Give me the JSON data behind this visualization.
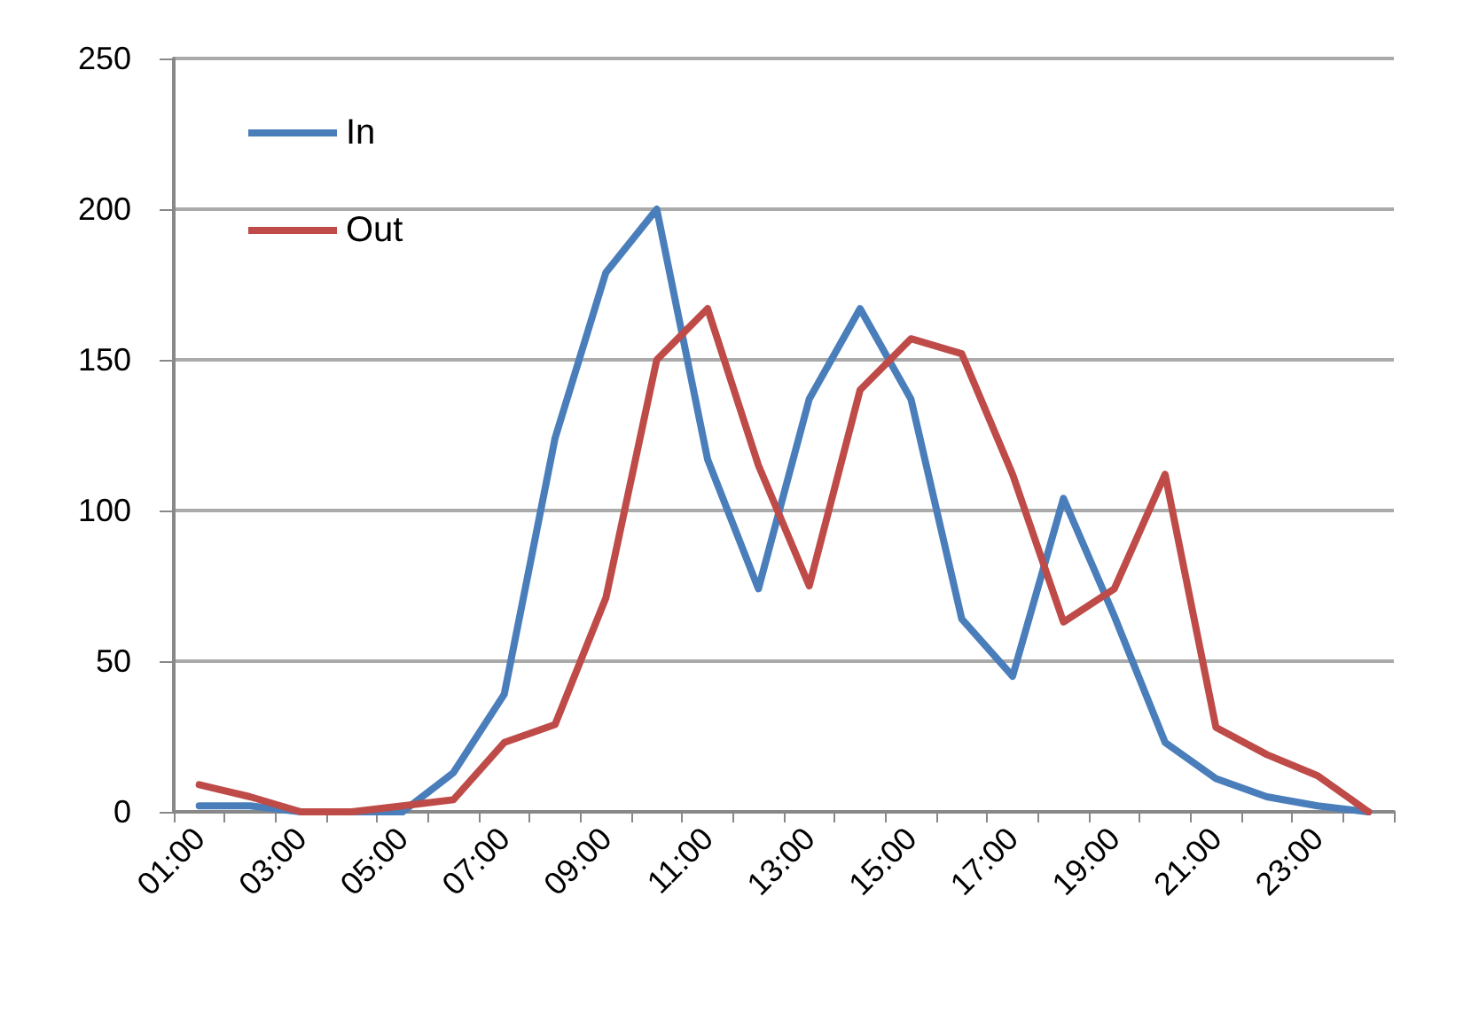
{
  "chart_data": {
    "type": "line",
    "categories": [
      "01:00",
      null,
      "03:00",
      null,
      "05:00",
      null,
      "07:00",
      null,
      "09:00",
      null,
      "11:00",
      null,
      "13:00",
      null,
      "15:00",
      null,
      "17:00",
      null,
      "19:00",
      null,
      "21:00",
      null,
      "23:00",
      null
    ],
    "series": [
      {
        "name": "In",
        "color": "#4a7ebb",
        "values": [
          2,
          2,
          0,
          0,
          0,
          13,
          39,
          124,
          179,
          200,
          117,
          74,
          137,
          167,
          137,
          64,
          45,
          104,
          65,
          23,
          11,
          5,
          2,
          0
        ]
      },
      {
        "name": "Out",
        "color": "#be4b48",
        "values": [
          9,
          5,
          0,
          0,
          2,
          4,
          23,
          29,
          71,
          150,
          167,
          115,
          75,
          140,
          157,
          152,
          112,
          63,
          74,
          112,
          28,
          19,
          12,
          0
        ]
      }
    ],
    "ylim": [
      0,
      250
    ],
    "yticks": [
      0,
      50,
      100,
      150,
      200,
      250
    ],
    "grid": "y",
    "legend": "top left",
    "marker": "none",
    "line_style": "solid"
  }
}
